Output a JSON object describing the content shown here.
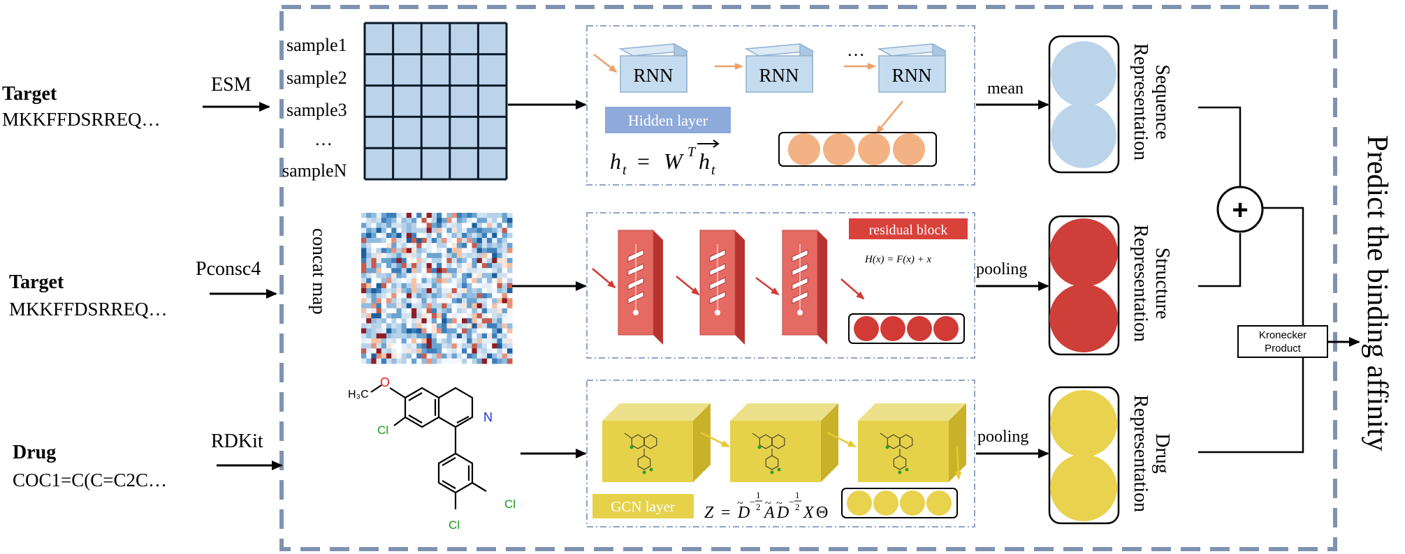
{
  "inputs": {
    "target1": {
      "label": "Target",
      "sequence": "MKKFFDSRREQ…",
      "tool": "ESM"
    },
    "target2": {
      "label": "Target",
      "sequence": "MKKFFDSRREQ…",
      "tool": "Pconsc4"
    },
    "drug": {
      "label": "Drug",
      "sequence": "COC1=C(C=C2C…",
      "tool": "RDKit"
    }
  },
  "samples": [
    "sample1",
    "sample2",
    "sample3",
    "…",
    "sampleN"
  ],
  "concat_map_label": "concat map",
  "rnn": {
    "cells": [
      "RNN",
      "RNN",
      "RNN"
    ],
    "ellipsis": "…",
    "hidden_label": "Hidden layer"
  },
  "residual": {
    "label": "residual block",
    "formula": "H(x) = F(x) + x"
  },
  "gcn": {
    "label": "GCN layer"
  },
  "aggregations": {
    "mean": "mean",
    "pooling1": "pooling",
    "pooling2": "pooling"
  },
  "representations": {
    "sequence": {
      "line1": "Sequence",
      "line2": "Representation"
    },
    "structure": {
      "line1": "Structure",
      "line2": "Representation"
    },
    "drug": {
      "line1": "Drug",
      "line2": "Representation"
    }
  },
  "plus_symbol": "+",
  "kronecker": {
    "line1": "Kronecker",
    "line2": "Product"
  },
  "output_label": "Predict the binding affinity",
  "molecule_atoms": {
    "methyl": "H₃C",
    "oxygen": "O",
    "nitrogen": "N",
    "chlorine": "Cl"
  },
  "colors": {
    "dashed_border": "#7f93b0",
    "sequence": "#bcd4ea",
    "structure": "#cf3f3a",
    "drug": "#e8d24e",
    "rnn": "#c5dcf0",
    "hidden": "#8eaadb",
    "residual": "#d9413b",
    "gcn": "#e6d24a",
    "rnn_out": "#f2b283"
  }
}
